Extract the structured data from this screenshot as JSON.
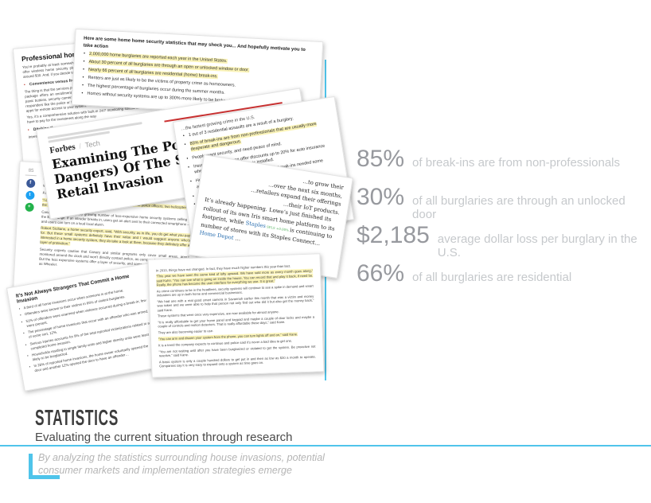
{
  "colors": {
    "accent_blue": "#4FC4EA",
    "highlight_yellow": "#FBF4B8"
  },
  "stats": {
    "items": [
      {
        "value": "85%",
        "label": "of break-ins are from non-professionals"
      },
      {
        "value": "30%",
        "label": "of all burglaries are through an unlocked door"
      },
      {
        "value": "$2,185",
        "label": "average dollar loss per burglary in the U.S."
      },
      {
        "value": "66%",
        "label": "of all burglaries are residential"
      }
    ]
  },
  "footer": {
    "title": "STATISTICS",
    "subtitle": "Evaluating the current situation through research",
    "quote_line1": "By analyzing the statistics surrounding house invasions, potential",
    "quote_line2": "consumer markets and implementation strategies emerge"
  },
  "clippings": {
    "security_stats": {
      "intro": "Here are some home home security statistics that may shock you... And hopefully motivate you to take action",
      "bullets": [
        {
          "text": "2,000,000 home burglaries are reported each year in the United States.",
          "hl": true
        },
        {
          "text": "About 30 percent of all burglaries are through an open or unlocked window or door.",
          "hl": true
        },
        {
          "text": "Nearly 66 percent of all burglaries are residential (home) break-ins.",
          "hl": true
        },
        {
          "text": "Renters are just as likely to be the victims of property crime as homeowners.",
          "hl": false
        },
        {
          "text": "The highest percentage of burglaries occur during the summer months.",
          "hl": false
        },
        {
          "text": "Homes without security systems are up to 300% more likely to be broken into.",
          "hl": false
        }
      ]
    },
    "professional": {
      "title": "Professional home security",
      "items": [
        {
          "text": "You’re probably at least somewhat familiar with the big names: AT&T, Vivint and Frontpoint offer wireless home security plans that lock you into a contract that’s typically priced at around $30. And, if you decide to cancel, you end up paying an early cancellation fee."
        },
        {
          "text": "Convenience versus freedom",
          "sec": true
        },
        {
          "text": "The thing is that the services professional firms offer are not incredibly appealing. Part of the package offers an enrollment keypad, door/window sensors, motion sensors, key chains, panic buttons, security cameras, professional monitoring (meaning ADT gets to contact first responders like the police or EMS as needed), smoke detectors, as well as mobile and web apps for remote access to your system."
        },
        {
          "text": "Yes, it’s a comprehensive solution with built-in 24/7 monitoring solutions, but you’re going to have to pay for the investment along the way."
        },
        {
          "text": "Ditching the status quo",
          "sec": true
        },
        {
          "text": "Interestingly though, many are making the switch to self-monitored systems."
        }
      ]
    },
    "forbes": {
      "masthead": "Forbes",
      "masthead_divider": "/",
      "section": "Tech",
      "headline": "Examining The Possibilities (And Dangers) Of The Smart Home Retail Invasion"
    },
    "break_in_facts": {
      "lead": "…the fastest growing crime in the U.S.",
      "bullets": [
        {
          "text": "1 out of 3 residential assaults are a result of a burglary.",
          "hl": false
        },
        {
          "text": "85% of break-ins are from non-professionals that are usually more desperate and dangerous.",
          "hl": true
        },
        {
          "text": "People want security, and need peace of mind.",
          "hl": false
        },
        {
          "text": "Insurance agencies can offer discounts up to 20% for auto insurance when a home security system is installed.",
          "hl": false
        },
        {
          "text": "Home security statistics tell us that 95% of break-ins needed some amount of force to break in.",
          "hl": false
        },
        {
          "text": "Thieves prefer easy access, through an unlocked doors or windows.",
          "hl": false
        },
        {
          "text": "Home security statistics tell us that the type of tools used to break in are usually simple: a screwdriver, pliers, prise bars, and small hammers are most common.",
          "hl": false
        },
        {
          "text": "Police usually only clear 13% of all reported burglaries due to lack of witnesses or physical evidence.",
          "hl": false
        }
      ]
    },
    "canary": {
      "share_count": "85",
      "icons": [
        {
          "name": "facebook-icon",
          "glyph": "f"
        },
        {
          "name": "twitter-icon",
          "glyph": "t"
        },
        {
          "name": "share-icon",
          "glyph": "+"
        }
      ],
      "paras": [
        {
          "text": "…was at work Monday when the alert went off and watched footage of the burglars rummaging through the home.",
          "frag": true
        },
        {
          "text": "Wheeler sent the video to New York City police."
        },
        {
          "text": "Facebook ‘Dislike’ Button: Why It Might Not Be a Good Idea",
          "link": true
        },
        {
          "text": "“I called the police as soon as I got the alert,” Wheeler said. “40 police officers, two helicopters in the sky … the drama.”",
          "hl": true
        },
        {
          "text": "Canary is one of a rapidly growing number of less-expensive home security systems selling in the $250 range. If an intruder breaks in, users get an alert sent to their connected smartphone — and users can turn on a loud local alarm."
        },
        {
          "text": "Robert Siciliano, a home security expert, said, “With security, as in life, you do get what you pay for. But these small systems definitely have their value and I would suggest anyone who’s interested in a home security system, they do take a look at them, because they definitely offer a layer of protection.”",
          "hl": true
        },
        {
          "text": "Security experts caution that Canary and similar programs only cover small areas, aren’t monitored around the clock and won’t directly contact police, as compared to traditional options. But the less expensive systems offer a layer of security, and some wiggle room, for people such as Wheeler."
        }
      ]
    },
    "retail": {
      "lines": [
        {
          "right": true,
          "segs": [
            {
              "t": "…to grow their"
            }
          ]
        },
        {
          "right": true,
          "segs": [
            {
              "t": "…over the next six months,"
            }
          ]
        },
        {
          "right": true,
          "segs": [
            {
              "t": "…retailers expand their offerings"
            }
          ]
        },
        {
          "right": true,
          "segs": [
            {
              "t": "…their IoT products."
            }
          ]
        },
        {
          "segs": [
            {
              "t": "It’s already happening.  Lowe’s just finished its"
            }
          ]
        },
        {
          "segs": [
            {
              "t": "rollout of its own Iris smart home platform to its"
            }
          ]
        },
        {
          "segs": [
            {
              "t": "footprint, while "
            },
            {
              "t": "Staples",
              "c": "lnk"
            },
            {
              "t": " SPLS +0.00% ",
              "c": "tkr"
            },
            {
              "t": "is continuing to"
            }
          ]
        },
        {
          "segs": [
            {
              "t": "number of stores with its Staples Connect…"
            }
          ]
        },
        {
          "segs": [
            {
              "t": "Home Depot",
              "c": "lnk"
            },
            {
              "t": " …"
            }
          ]
        }
      ]
    },
    "strangers": {
      "title": "It’s Not Always Strangers That Commit a Home Invasion",
      "bullets": [
        "A third of all home invasions occur when someone is at the home.",
        "Offenders were known to their victims in 65% of violent burglaries.",
        "51% of offenders were unarmed when violence occurred during a break-in; few were present.",
        "The percentage of home invasions that occur with an offender who was armed, of some sort, 12%.",
        "Serious injuries accounts for 9% of the total reported victimizations related to a completed home invasion.",
        "Households residing in single family units and higher density units were least likely to be burglarized.",
        "In 28% of reported home invasions, the home owner voluntarily opened the door and another 12% opened the door to have an offender…"
      ]
    },
    "interview": {
      "paras": [
        {
          "text": "In 2013, things have not changed. In fact, they have much higher numbers this year than last."
        },
        {
          "text": "“This year we have seen the same kind of lofty upward. We have sold more as every month goes along,” said Kuhn. “You can see what is going on inside the house. You can record that and play it back, if need be. Really, the phone has become the user interface for everything we use. It is great.”",
          "hl": true
        },
        {
          "text": "As crime continues to be in the headlines, security systems will continue to see a spike in demand and smart industries are up in both home and commercial businesses."
        },
        {
          "text": "“We had one with a real good smart camera in Savannah earlier this month that was a victim and money was taken and we were able to help that person not only find out who did it but also get the money back,” said Kane."
        },
        {
          "text": "These systems that were once very expensive, are now available for almost anyone."
        },
        {
          "text": "“It is really affordable to get your home panel and keypad and maybe a couple of door locks and maybe a couple of controls and motion detectors. That is really affordable these days,” said Kane."
        },
        {
          "text": "They are also becoming easier to use."
        },
        {
          "text": "“You can arm and disarm your system from the phone, you can turn lights off and on,” said Kane.",
          "hl": true
        },
        {
          "text": "It is a trend the company expects to continue and police said it’s never a bad idea to get one."
        },
        {
          "text": "“You are not waiting until after you have been burglarized or violated to get the system. Be proactive not reactive,” said Kane."
        },
        {
          "text": "A basic system is only a couple hundred dollars to get put in and then as low as $30 a month to operate. Companies say it is very easy to expand onto a system as time goes on."
        }
      ]
    }
  }
}
